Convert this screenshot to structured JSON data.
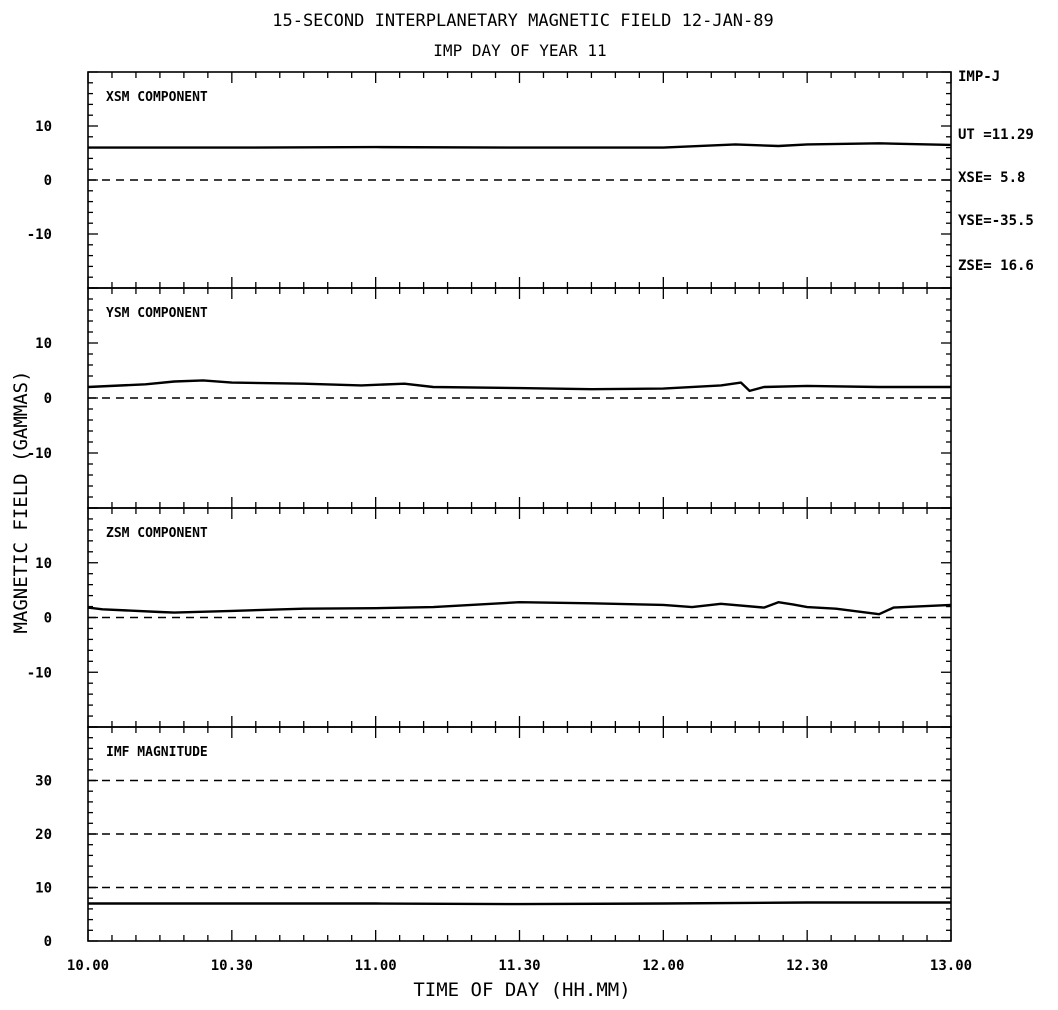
{
  "title": "15-SECOND INTERPLANETARY MAGNETIC FIELD 12-JAN-89",
  "subtitle": "IMP DAY OF YEAR  11",
  "xlabel": "TIME OF DAY (HH.MM)",
  "ylabel": "MAGNETIC FIELD (GAMMAS)",
  "side_info": [
    "IMP-J",
    "UT =11.29",
    "XSE=  5.8",
    "YSE=-35.5",
    "ZSE= 16.6"
  ],
  "x_tick_labels": [
    "10.00",
    "10.30",
    "11.00",
    "11.30",
    "12.00",
    "12.30",
    "13.00"
  ],
  "colors": {
    "ink": "#000000",
    "background": "#ffffff"
  },
  "chart_data": [
    {
      "type": "line",
      "label": "XSM COMPONENT",
      "ylim": [
        -20,
        20
      ],
      "ytick_labels": [
        "10",
        "0",
        "-10"
      ],
      "ytick_values": [
        10,
        0,
        -10
      ],
      "dashed_reference_lines": [
        0
      ],
      "x": [
        10.0,
        10.5,
        11.0,
        11.5,
        12.0,
        12.25,
        12.4,
        12.5,
        12.75,
        13.0
      ],
      "values": [
        6.0,
        6.0,
        6.1,
        6.0,
        6.0,
        6.6,
        6.3,
        6.6,
        6.8,
        6.5
      ]
    },
    {
      "type": "line",
      "label": "YSM COMPONENT",
      "ylim": [
        -20,
        20
      ],
      "ytick_labels": [
        "10",
        "0",
        "-10"
      ],
      "ytick_values": [
        10,
        0,
        -10
      ],
      "dashed_reference_lines": [
        0
      ],
      "x": [
        10.0,
        10.2,
        10.3,
        10.4,
        10.5,
        10.75,
        10.95,
        11.1,
        11.2,
        11.5,
        11.75,
        12.0,
        12.2,
        12.27,
        12.3,
        12.35,
        12.5,
        12.75,
        13.0
      ],
      "values": [
        2.0,
        2.5,
        3.0,
        3.2,
        2.8,
        2.6,
        2.3,
        2.6,
        2.0,
        1.8,
        1.6,
        1.7,
        2.3,
        2.8,
        1.3,
        2.0,
        2.2,
        2.0,
        2.0
      ]
    },
    {
      "type": "line",
      "label": "ZSM COMPONENT",
      "ylim": [
        -20,
        20
      ],
      "ytick_labels": [
        "10",
        "0",
        "-10"
      ],
      "ytick_values": [
        10,
        0,
        -10
      ],
      "dashed_reference_lines": [
        0
      ],
      "x": [
        10.0,
        10.05,
        10.25,
        10.3,
        10.5,
        10.75,
        11.0,
        11.2,
        11.5,
        11.75,
        12.0,
        12.1,
        12.2,
        12.35,
        12.4,
        12.45,
        12.5,
        12.6,
        12.75,
        12.8,
        13.0
      ],
      "values": [
        1.8,
        1.5,
        1.0,
        0.9,
        1.2,
        1.6,
        1.7,
        1.9,
        2.8,
        2.6,
        2.3,
        1.9,
        2.5,
        1.8,
        2.8,
        2.4,
        1.9,
        1.6,
        0.6,
        1.8,
        2.3
      ]
    },
    {
      "type": "line",
      "label": "IMF MAGNITUDE",
      "ylim": [
        0,
        40
      ],
      "ytick_labels": [
        "30",
        "20",
        "10",
        "0"
      ],
      "ytick_values": [
        30,
        20,
        10,
        0
      ],
      "dashed_reference_lines": [
        30,
        20,
        10
      ],
      "x": [
        10.0,
        10.5,
        11.0,
        11.5,
        12.0,
        12.5,
        13.0
      ],
      "values": [
        7.0,
        7.0,
        7.0,
        6.9,
        7.0,
        7.2,
        7.2
      ]
    }
  ]
}
